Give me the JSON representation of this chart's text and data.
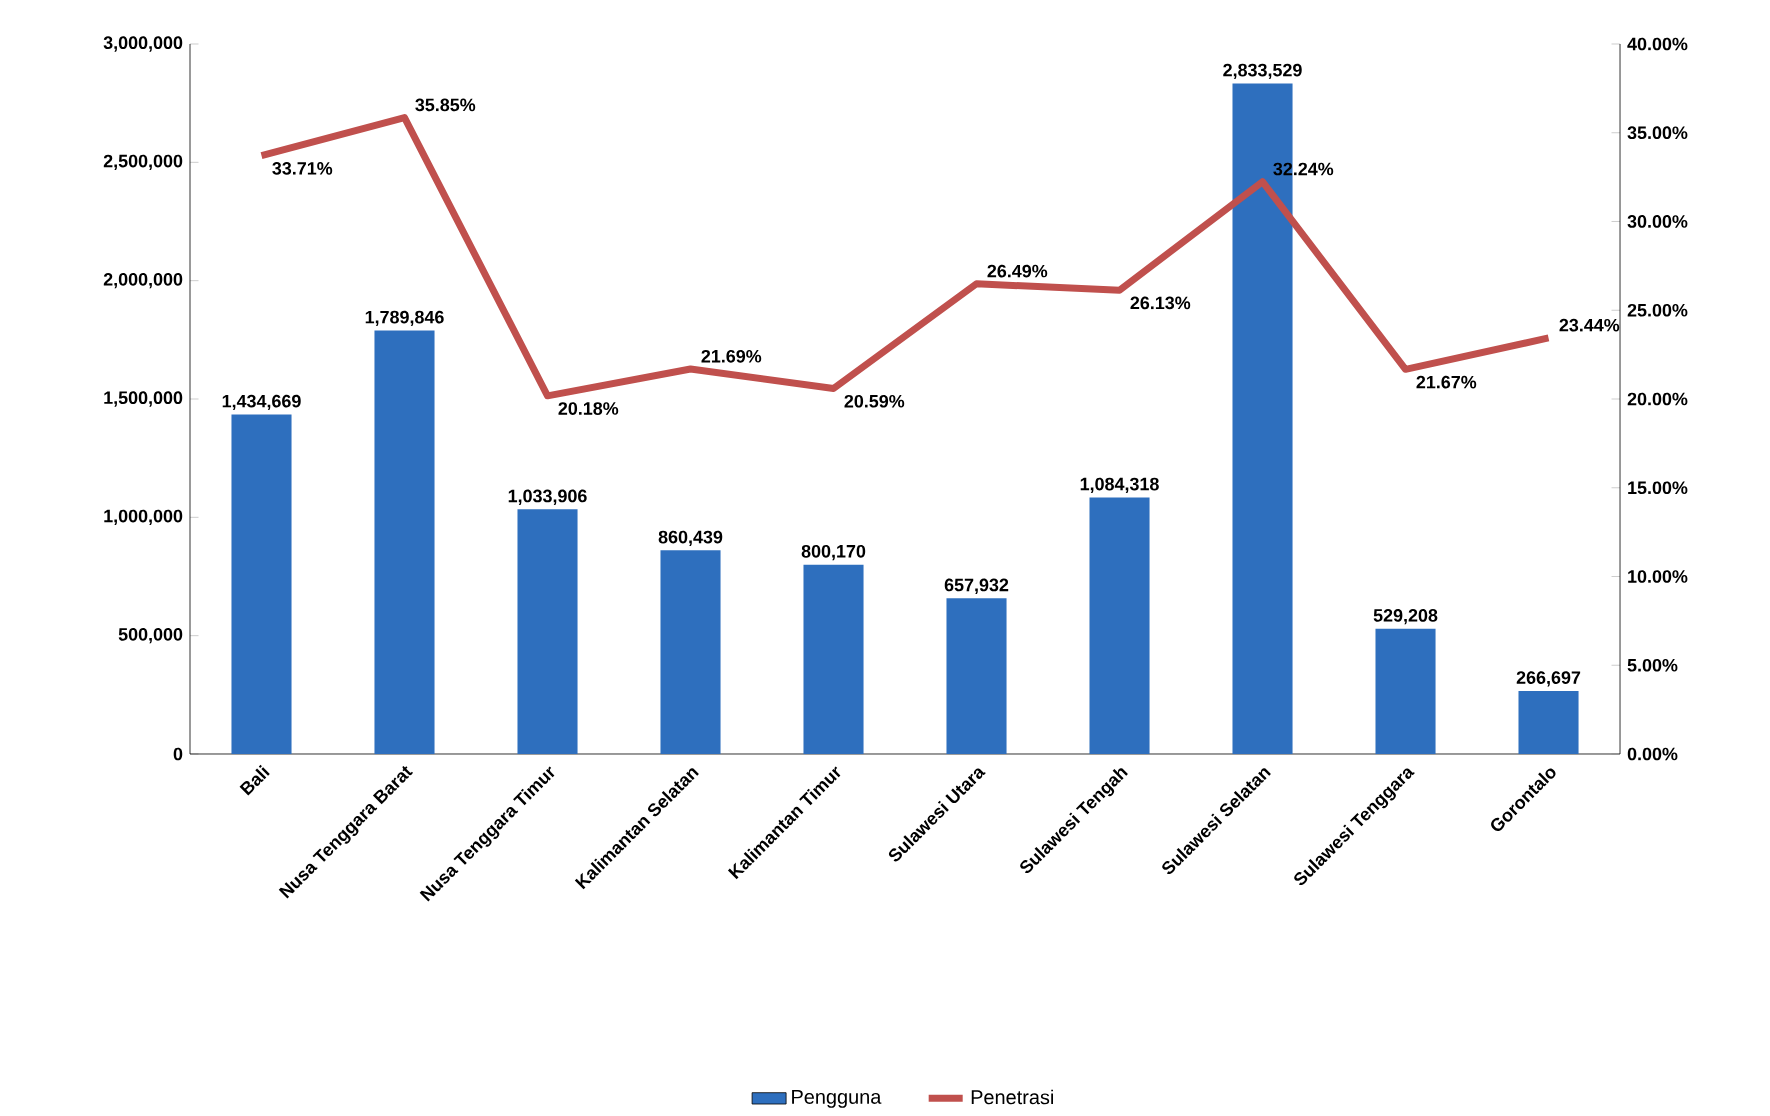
{
  "chart_data": {
    "type": "bar",
    "categories": [
      "Bali",
      "Nusa Tenggara Barat",
      "Nusa Tenggara Timur",
      "Kalimantan Selatan",
      "Kalimantan Timur",
      "Sulawesi Utara",
      "Sulawesi Tengah",
      "Sulawesi Selatan",
      "Sulawesi Tenggara",
      "Gorontalo"
    ],
    "series": [
      {
        "name": "Pengguna",
        "color": "#2e6fbe",
        "values": [
          1434669,
          1789846,
          1033906,
          860439,
          800170,
          657932,
          1084318,
          2833529,
          529208,
          266697
        ],
        "value_labels": [
          "1,434,669",
          "1,789,846",
          "1,033,906",
          "860,439",
          "800,170",
          "657,932",
          "1,084,318",
          "2,833,529",
          "529,208",
          "266,697"
        ]
      },
      {
        "name": "Penetrasi",
        "type": "line",
        "axis": "y2",
        "color": "#c0504d",
        "values": [
          33.71,
          35.85,
          20.18,
          21.69,
          20.59,
          26.49,
          26.13,
          32.24,
          21.67,
          23.44
        ],
        "value_labels": [
          "33.71%",
          "35.85%",
          "20.18%",
          "21.69%",
          "20.59%",
          "26.49%",
          "26.13%",
          "32.24%",
          "21.67%",
          "23.44%"
        ]
      }
    ],
    "ylim": [
      0,
      3000000
    ],
    "yticks": [
      {
        "value": 0,
        "label": "0"
      },
      {
        "value": 500000,
        "label": "500,000"
      },
      {
        "value": 1000000,
        "label": "1,000,000"
      },
      {
        "value": 1500000,
        "label": "1,500,000"
      },
      {
        "value": 2000000,
        "label": "2,000,000"
      },
      {
        "value": 2500000,
        "label": "2,500,000"
      },
      {
        "value": 3000000,
        "label": "3,000,000"
      }
    ],
    "y2lim": [
      0,
      40
    ],
    "y2ticks": [
      {
        "value": 0,
        "label": "0.00%"
      },
      {
        "value": 5,
        "label": "5.00%"
      },
      {
        "value": 10,
        "label": "10.00%"
      },
      {
        "value": 15,
        "label": "15.00%"
      },
      {
        "value": 20,
        "label": "20.00%"
      },
      {
        "value": 25,
        "label": "25.00%"
      },
      {
        "value": 30,
        "label": "30.00%"
      },
      {
        "value": 35,
        "label": "35.00%"
      },
      {
        "value": 40,
        "label": "40.00%"
      }
    ],
    "grid": false,
    "legend": "bottom",
    "marker": "none"
  }
}
